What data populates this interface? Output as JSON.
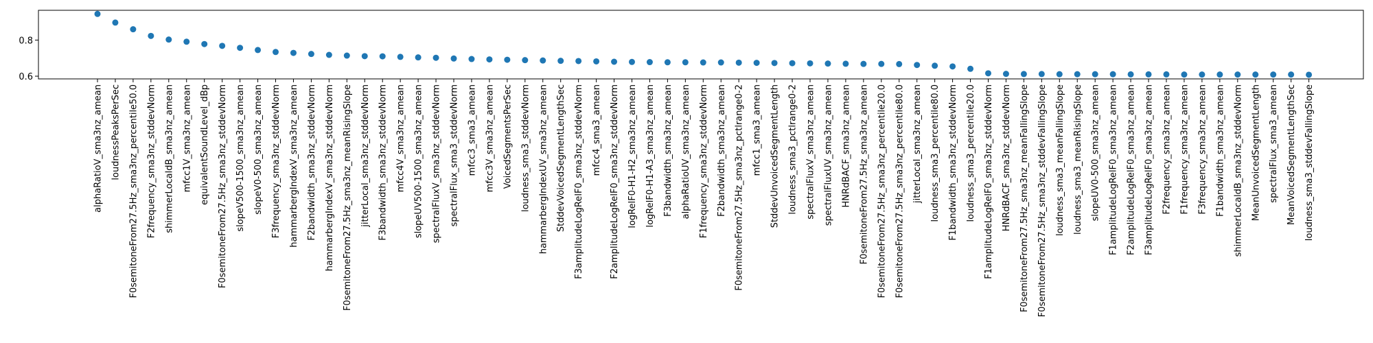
{
  "chart_data": {
    "type": "scatter",
    "title": "",
    "xlabel": "",
    "ylabel": "",
    "ylim": [
      0.585,
      0.965
    ],
    "yticks": [
      0.6,
      0.8
    ],
    "ytick_labels": [
      "0.6",
      "0.8"
    ],
    "grid": false,
    "legend": "none",
    "colors": {
      "marker": "#1f77b4",
      "axis": "#000000",
      "text": "#000000",
      "background": "#ffffff"
    },
    "categories": [
      "alphaRatioV_sma3nz_amean",
      "loudnessPeaksPerSec",
      "F0semitoneFrom27.5Hz_sma3nz_percentile50.0",
      "F2frequency_sma3nz_stddevNorm",
      "shimmerLocaldB_sma3nz_amean",
      "mfcc1V_sma3nz_amean",
      "equivalentSoundLevel_dBp",
      "F0semitoneFrom27.5Hz_sma3nz_stddevNorm",
      "slopeV500-1500_sma3nz_amean",
      "slopeV0-500_sma3nz_amean",
      "F3frequency_sma3nz_stddevNorm",
      "hammarbergIndexV_sma3nz_amean",
      "F2bandwidth_sma3nz_stddevNorm",
      "hammarbergIndexV_sma3nz_stddevNorm",
      "F0semitoneFrom27.5Hz_sma3nz_meanRisingSlope",
      "jitterLocal_sma3nz_stddevNorm",
      "F3bandwidth_sma3nz_stddevNorm",
      "mfcc4V_sma3nz_amean",
      "slopeUV500-1500_sma3nz_amean",
      "spectralFluxV_sma3nz_stddevNorm",
      "spectralFlux_sma3_stddevNorm",
      "mfcc3_sma3_amean",
      "mfcc3V_sma3nz_amean",
      "VoicedSegmentsPerSec",
      "loudness_sma3_stddevNorm",
      "hammarbergIndexUV_sma3nz_amean",
      "StddevVoicedSegmentLengthSec",
      "F3amplitudeLogRelF0_sma3nz_stddevNorm",
      "mfcc4_sma3_amean",
      "F2amplitudeLogRelF0_sma3nz_stddevNorm",
      "logRelF0-H1-H2_sma3nz_amean",
      "logRelF0-H1-A3_sma3nz_amean",
      "F3bandwidth_sma3nz_amean",
      "alphaRatioUV_sma3nz_amean",
      "F1frequency_sma3nz_stddevNorm",
      "F2bandwidth_sma3nz_amean",
      "F0semitoneFrom27.5Hz_sma3nz_pctlrange0-2",
      "mfcc1_sma3_amean",
      "StddevUnvoicedSegmentLength",
      "loudness_sma3_pctlrange0-2",
      "spectralFluxV_sma3nz_amean",
      "spectralFluxUV_sma3nz_amean",
      "HNRdBACF_sma3nz_amean",
      "F0semitoneFrom27.5Hz_sma3nz_amean",
      "F0semitoneFrom27.5Hz_sma3nz_percentile20.0",
      "F0semitoneFrom27.5Hz_sma3nz_percentile80.0",
      "jitterLocal_sma3nz_amean",
      "loudness_sma3_percentile80.0",
      "F1bandwidth_sma3nz_stddevNorm",
      "loudness_sma3_percentile20.0",
      "F1amplitudeLogRelF0_sma3nz_stddevNorm",
      "HNRdBACF_sma3nz_stddevNorm",
      "F0semitoneFrom27.5Hz_sma3nz_meanFallingSlope",
      "F0semitoneFrom27.5Hz_sma3nz_stddevFallingSlope",
      "loudness_sma3_meanFallingSlope",
      "loudness_sma3_meanRisingSlope",
      "slopeUV0-500_sma3nz_amean",
      "F1amplitudeLogRelF0_sma3nz_amean",
      "F2amplitudeLogRelF0_sma3nz_amean",
      "F3amplitudeLogRelF0_sma3nz_amean",
      "F2frequency_sma3nz_amean",
      "F1frequency_sma3nz_amean",
      "F3frequency_sma3nz_amean",
      "F1bandwidth_sma3nz_amean",
      "shimmerLocaldB_sma3nz_stddevNorm",
      "MeanUnvoicedSegmentLength",
      "spectralFlux_sma3_amean",
      "MeanVoicedSegmentLengthSec",
      "loudness_sma3_stddevFallingSlope"
    ],
    "values": [
      0.945,
      0.897,
      0.86,
      0.823,
      0.803,
      0.791,
      0.778,
      0.768,
      0.757,
      0.745,
      0.734,
      0.729,
      0.723,
      0.718,
      0.714,
      0.711,
      0.71,
      0.707,
      0.704,
      0.702,
      0.698,
      0.695,
      0.693,
      0.691,
      0.689,
      0.687,
      0.685,
      0.684,
      0.682,
      0.68,
      0.679,
      0.678,
      0.677,
      0.677,
      0.676,
      0.676,
      0.675,
      0.674,
      0.673,
      0.672,
      0.671,
      0.67,
      0.669,
      0.668,
      0.668,
      0.667,
      0.662,
      0.658,
      0.654,
      0.641,
      0.616,
      0.613,
      0.612,
      0.612,
      0.611,
      0.611,
      0.611,
      0.611,
      0.61,
      0.61,
      0.61,
      0.609,
      0.609,
      0.609,
      0.609,
      0.609,
      0.609,
      0.609,
      0.608
    ]
  }
}
